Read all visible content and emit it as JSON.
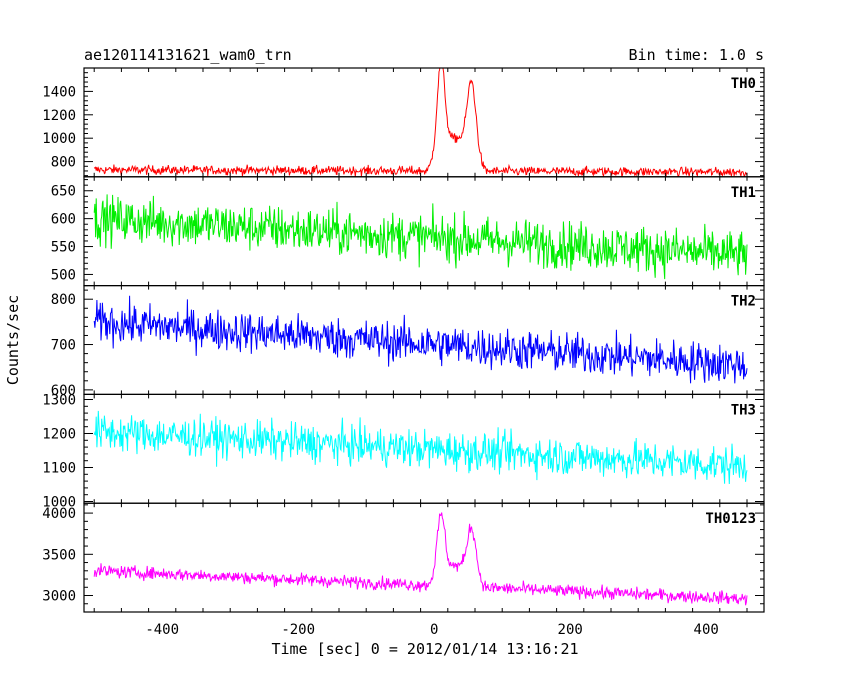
{
  "chart_data": {
    "type": "line",
    "title": "ae120114131621_wam0_trn",
    "subtitle": "Bin time: 1.0 s",
    "xlabel": "Time [sec] 0 = 2012/01/14 13:16:21",
    "ylabel": "Counts/sec",
    "xlim": [
      -515,
      485
    ],
    "x_ticks": [
      -400,
      -200,
      0,
      200,
      400
    ],
    "x_range": [
      -500,
      460
    ],
    "panels": [
      {
        "name": "TH0",
        "color": "#ff0000",
        "ylim": [
          670,
          1600
        ],
        "y_ticks": [
          800,
          1000,
          1200,
          1400
        ],
        "baseline_start": 730,
        "baseline_end": 710,
        "noise": 28,
        "peaks": [
          {
            "t": 10,
            "height": 750,
            "width": 8
          },
          {
            "t": 55,
            "height": 580,
            "width": 9
          }
        ],
        "bump": {
          "from": -10,
          "to": 75,
          "level": 280
        }
      },
      {
        "name": "TH1",
        "color": "#00ee00",
        "ylim": [
          480,
          675
        ],
        "y_ticks": [
          500,
          550,
          600,
          650
        ],
        "baseline_start": 600,
        "baseline_end": 535,
        "noise": 30,
        "peaks": [],
        "bump": null
      },
      {
        "name": "TH2",
        "color": "#0000ff",
        "ylim": [
          590,
          830
        ],
        "y_ticks": [
          600,
          700,
          800
        ],
        "baseline_start": 750,
        "baseline_end": 655,
        "noise": 32,
        "peaks": [],
        "bump": null
      },
      {
        "name": "TH3",
        "color": "#00ffff",
        "ylim": [
          995,
          1315
        ],
        "y_ticks": [
          1000,
          1100,
          1200,
          1300
        ],
        "baseline_start": 1205,
        "baseline_end": 1105,
        "noise": 40,
        "peaks": [],
        "bump": null
      },
      {
        "name": "TH0123",
        "color": "#ff00ff",
        "ylim": [
          2800,
          4120
        ],
        "y_ticks": [
          3000,
          3500,
          4000
        ],
        "baseline_start": 3300,
        "baseline_end": 2960,
        "noise": 55,
        "peaks": [
          {
            "t": 10,
            "height": 700,
            "width": 8
          },
          {
            "t": 55,
            "height": 560,
            "width": 9
          }
        ],
        "bump": {
          "from": -10,
          "to": 75,
          "level": 250
        }
      }
    ]
  }
}
